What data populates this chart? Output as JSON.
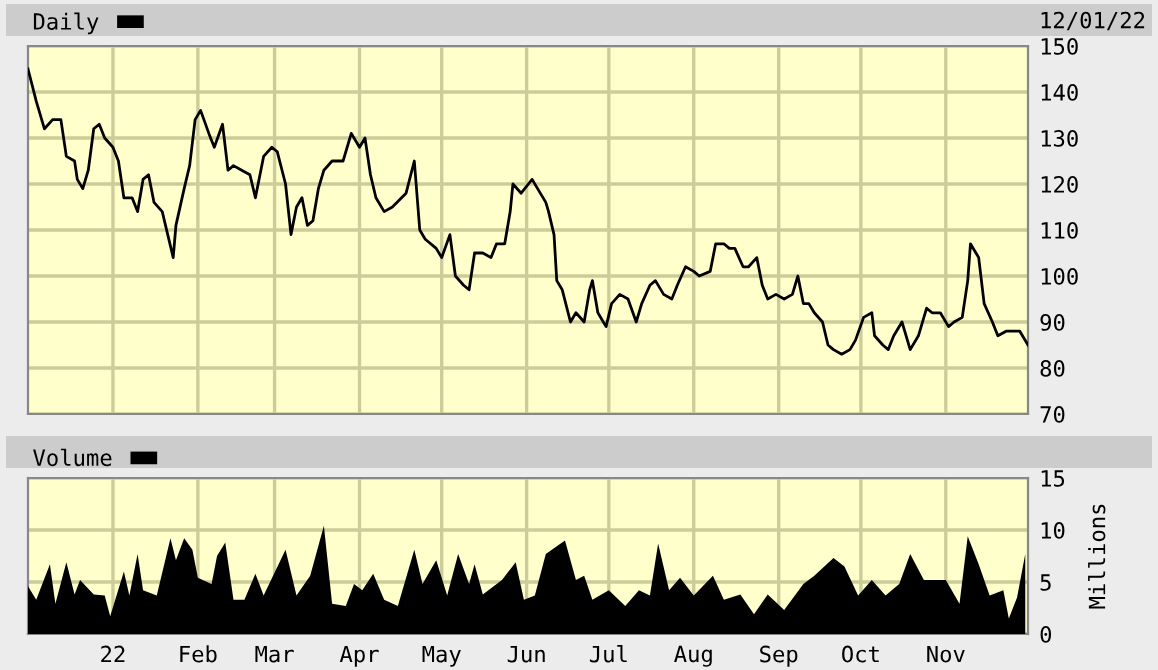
{
  "chart_data": [
    {
      "type": "line",
      "legend": "top left",
      "grid": true,
      "tick_labels": "y",
      "xlim": [
        "2021-12-01",
        "2022-12-01"
      ],
      "xticks": [
        {
          "value": "2022-01-01",
          "label": null
        },
        {
          "value": "2022-02-01",
          "label": null
        },
        {
          "value": "2022-03-01",
          "label": null
        },
        {
          "value": "2022-04-01",
          "label": null
        },
        {
          "value": "2022-05-01",
          "label": null
        },
        {
          "value": "2022-06-01",
          "label": null
        },
        {
          "value": "2022-07-01",
          "label": null
        },
        {
          "value": "2022-08-01",
          "label": null
        },
        {
          "value": "2022-09-01",
          "label": null
        },
        {
          "value": "2022-10-01",
          "label": null
        },
        {
          "value": "2022-11-01",
          "label": null
        }
      ],
      "ylim": [
        70,
        150
      ],
      "yticks": [
        70,
        80,
        90,
        100,
        110,
        120,
        130,
        140,
        150
      ],
      "annotations": [
        "12/01/22"
      ],
      "x": [
        "2021-12-01",
        "2021-12-04",
        "2021-12-07",
        "2021-12-10",
        "2021-12-13",
        "2021-12-15",
        "2021-12-18",
        "2021-12-19",
        "2021-12-21",
        "2021-12-23",
        "2021-12-25",
        "2021-12-27",
        "2021-12-29",
        "2022-01-01",
        "2022-01-03",
        "2022-01-05",
        "2022-01-08",
        "2022-01-10",
        "2022-01-12",
        "2022-01-14",
        "2022-01-16",
        "2022-01-19",
        "2022-01-21",
        "2022-01-23",
        "2022-01-24",
        "2022-01-27",
        "2022-01-29",
        "2022-01-31",
        "2022-02-02",
        "2022-02-05",
        "2022-02-07",
        "2022-02-10",
        "2022-02-12",
        "2022-02-14",
        "2022-02-17",
        "2022-02-20",
        "2022-02-22",
        "2022-02-25",
        "2022-02-28",
        "2022-03-02",
        "2022-03-05",
        "2022-03-07",
        "2022-03-09",
        "2022-03-11",
        "2022-03-13",
        "2022-03-15",
        "2022-03-17",
        "2022-03-19",
        "2022-03-22",
        "2022-03-26",
        "2022-03-29",
        "2022-04-01",
        "2022-04-03",
        "2022-04-05",
        "2022-04-07",
        "2022-04-10",
        "2022-04-13",
        "2022-04-18",
        "2022-04-21",
        "2022-04-23",
        "2022-04-25",
        "2022-04-29",
        "2022-05-01",
        "2022-05-04",
        "2022-05-06",
        "2022-05-09",
        "2022-05-11",
        "2022-05-13",
        "2022-05-16",
        "2022-05-19",
        "2022-05-21",
        "2022-05-24",
        "2022-05-26",
        "2022-05-27",
        "2022-05-30",
        "2022-06-03",
        "2022-06-05",
        "2022-06-08",
        "2022-06-09",
        "2022-06-11",
        "2022-06-12",
        "2022-06-14",
        "2022-06-17",
        "2022-06-19",
        "2022-06-22",
        "2022-06-24",
        "2022-06-25",
        "2022-06-27",
        "2022-06-30",
        "2022-07-02",
        "2022-07-05",
        "2022-07-08",
        "2022-07-11",
        "2022-07-13",
        "2022-07-16",
        "2022-07-18",
        "2022-07-21",
        "2022-07-24",
        "2022-07-26",
        "2022-07-29",
        "2022-08-01",
        "2022-08-03",
        "2022-08-07",
        "2022-08-09",
        "2022-08-12",
        "2022-08-14",
        "2022-08-16",
        "2022-08-19",
        "2022-08-21",
        "2022-08-24",
        "2022-08-26",
        "2022-08-28",
        "2022-08-31",
        "2022-09-03",
        "2022-09-06",
        "2022-09-08",
        "2022-09-10",
        "2022-09-12",
        "2022-09-14",
        "2022-09-17",
        "2022-09-19",
        "2022-09-21",
        "2022-09-24",
        "2022-09-27",
        "2022-09-29",
        "2022-10-02",
        "2022-10-05",
        "2022-10-06",
        "2022-10-09",
        "2022-10-11",
        "2022-10-13",
        "2022-10-16",
        "2022-10-17",
        "2022-10-19",
        "2022-10-22",
        "2022-10-25",
        "2022-10-27",
        "2022-10-30",
        "2022-11-02",
        "2022-11-04",
        "2022-11-07",
        "2022-11-09",
        "2022-11-10",
        "2022-11-13",
        "2022-11-15",
        "2022-11-18",
        "2022-11-20",
        "2022-11-23",
        "2022-11-25",
        "2022-11-28",
        "2022-12-01"
      ],
      "series": [
        {
          "name": "Daily",
          "color": "#000000",
          "values": [
            145,
            138,
            132,
            134,
            134,
            126,
            125,
            121,
            119,
            123,
            132,
            133,
            130,
            128,
            125,
            117,
            117,
            114,
            121,
            122,
            116,
            114,
            109,
            104,
            111,
            119,
            124,
            134,
            136,
            131,
            128,
            133,
            123,
            124,
            123,
            122,
            117,
            126,
            128,
            127,
            120,
            109,
            115,
            117,
            111,
            112,
            119,
            123,
            125,
            125,
            131,
            128,
            130,
            122,
            117,
            114,
            115,
            118,
            125,
            110,
            108,
            106,
            104,
            109,
            100,
            98,
            97,
            105,
            105,
            104,
            107,
            107,
            114,
            120,
            118,
            121,
            119,
            116,
            114,
            109,
            99,
            97,
            90,
            92,
            90,
            97,
            99,
            92,
            89,
            94,
            96,
            95,
            90,
            94,
            98,
            99,
            96,
            95,
            98,
            102,
            101,
            100,
            101,
            107,
            107,
            106,
            106,
            102,
            102,
            104,
            98,
            95,
            96,
            95,
            96,
            100,
            94,
            94,
            92,
            90,
            85,
            84,
            83,
            84,
            86,
            91,
            92,
            87,
            85,
            84,
            87,
            90,
            88,
            84,
            87,
            93,
            92,
            92,
            89,
            90,
            91,
            99,
            107,
            104,
            94,
            90,
            87,
            88,
            88,
            88,
            85
          ]
        }
      ]
    },
    {
      "type": "area",
      "legend": "top left",
      "grid": true,
      "xlim": [
        "2021-12-01",
        "2022-12-01"
      ],
      "xticks": [
        {
          "value": "2022-01-01",
          "label": "22"
        },
        {
          "value": "2022-02-01",
          "label": "Feb"
        },
        {
          "value": "2022-03-01",
          "label": "Mar"
        },
        {
          "value": "2022-04-01",
          "label": "Apr"
        },
        {
          "value": "2022-05-01",
          "label": "May"
        },
        {
          "value": "2022-06-01",
          "label": "Jun"
        },
        {
          "value": "2022-07-01",
          "label": "Jul"
        },
        {
          "value": "2022-08-01",
          "label": "Aug"
        },
        {
          "value": "2022-09-01",
          "label": "Sep"
        },
        {
          "value": "2022-10-01",
          "label": "Oct"
        },
        {
          "value": "2022-11-01",
          "label": "Nov"
        }
      ],
      "ylim": [
        0,
        15
      ],
      "yticks": [
        0,
        5,
        10,
        15
      ],
      "ylabel": "Millions",
      "x": [
        "2021-12-01",
        "2021-12-04",
        "2021-12-09",
        "2021-12-11",
        "2021-12-15",
        "2021-12-18",
        "2021-12-20",
        "2021-12-25",
        "2021-12-29",
        "2021-12-31",
        "2022-01-05",
        "2022-01-07",
        "2022-01-10",
        "2022-01-12",
        "2022-01-17",
        "2022-01-22",
        "2022-01-24",
        "2022-01-27",
        "2022-01-30",
        "2022-02-01",
        "2022-02-06",
        "2022-02-08",
        "2022-02-11",
        "2022-02-14",
        "2022-02-18",
        "2022-02-22",
        "2022-02-25",
        "2022-03-05",
        "2022-03-09",
        "2022-03-14",
        "2022-03-19",
        "2022-03-22",
        "2022-03-27",
        "2022-03-30",
        "2022-04-02",
        "2022-04-06",
        "2022-04-10",
        "2022-04-15",
        "2022-04-21",
        "2022-04-24",
        "2022-04-29",
        "2022-05-03",
        "2022-05-07",
        "2022-05-11",
        "2022-05-13",
        "2022-05-16",
        "2022-05-23",
        "2022-05-28",
        "2022-05-31",
        "2022-06-04",
        "2022-06-08",
        "2022-06-15",
        "2022-06-19",
        "2022-06-22",
        "2022-06-25",
        "2022-07-01",
        "2022-07-07",
        "2022-07-12",
        "2022-07-16",
        "2022-07-19",
        "2022-07-23",
        "2022-07-27",
        "2022-08-01",
        "2022-08-08",
        "2022-08-12",
        "2022-08-18",
        "2022-08-23",
        "2022-08-28",
        "2022-09-03",
        "2022-09-10",
        "2022-09-14",
        "2022-09-21",
        "2022-09-25",
        "2022-09-30",
        "2022-10-05",
        "2022-10-10",
        "2022-10-15",
        "2022-10-19",
        "2022-10-24",
        "2022-11-01",
        "2022-11-06",
        "2022-11-09",
        "2022-11-13",
        "2022-11-17",
        "2022-11-22",
        "2022-11-24",
        "2022-11-27",
        "2022-11-30"
      ],
      "series": [
        {
          "name": "Volume",
          "color": "#000000",
          "values": [
            4.6,
            3.3,
            6.7,
            2.9,
            6.9,
            3.8,
            5.2,
            3.8,
            3.7,
            1.7,
            6.0,
            3.7,
            7.7,
            4.2,
            3.7,
            9.2,
            7.1,
            9.2,
            8.1,
            5.4,
            4.8,
            7.5,
            8.8,
            3.3,
            3.3,
            5.8,
            3.7,
            8.1,
            3.7,
            5.6,
            10.4,
            2.9,
            2.7,
            4.8,
            4.2,
            5.8,
            3.3,
            2.7,
            8.1,
            4.8,
            7.1,
            3.7,
            7.7,
            4.8,
            6.7,
            3.8,
            5.2,
            6.9,
            3.3,
            3.7,
            7.7,
            9.0,
            5.2,
            5.6,
            3.3,
            4.2,
            2.7,
            4.2,
            3.7,
            8.7,
            4.2,
            5.4,
            3.7,
            5.6,
            3.3,
            3.8,
            1.9,
            3.8,
            2.3,
            4.8,
            5.6,
            7.3,
            6.5,
            3.7,
            5.2,
            3.7,
            4.8,
            7.7,
            5.2,
            5.2,
            2.9,
            9.4,
            6.7,
            3.7,
            4.2,
            1.5,
            3.5,
            7.7
          ]
        }
      ]
    }
  ]
}
